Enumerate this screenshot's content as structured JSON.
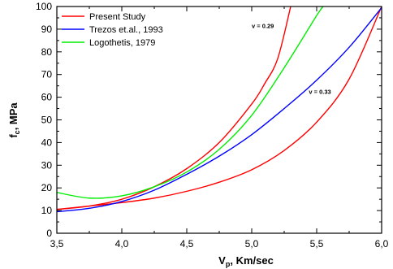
{
  "chart_data": {
    "type": "line",
    "xlabel": "V",
    "xlabel_sub": "p",
    "xlabel_unit": ", Km/sec",
    "ylabel": "f",
    "ylabel_sub": "c",
    "ylabel_unit": ", MPa",
    "xlim": [
      3.5,
      6.0
    ],
    "ylim": [
      0,
      100
    ],
    "x_ticks": [
      3.5,
      4.0,
      4.5,
      5.0,
      5.5,
      6.0
    ],
    "x_tick_labels": [
      "3,5",
      "4,0",
      "4,5",
      "5,0",
      "5,5",
      "6,0"
    ],
    "y_ticks": [
      0,
      10,
      20,
      30,
      40,
      50,
      60,
      70,
      80,
      90,
      100
    ],
    "y_tick_labels": [
      "0",
      "10",
      "20",
      "30",
      "40",
      "50",
      "60",
      "70",
      "80",
      "90",
      "100"
    ],
    "grid": false,
    "legend_position": "top-left",
    "series": [
      {
        "name": "Present Study",
        "color": "#ff0000",
        "x": [
          3.5,
          3.75,
          4.0,
          4.25,
          4.5,
          4.75,
          5.0,
          5.1,
          5.2,
          5.3
        ],
        "y": [
          10.5,
          12.0,
          15.0,
          20.5,
          28.5,
          40.0,
          57.0,
          66.0,
          77.0,
          100.0
        ]
      },
      {
        "name": "",
        "color": "#ff0000",
        "x": [
          3.5,
          3.75,
          4.0,
          4.25,
          4.5,
          4.75,
          5.0,
          5.25,
          5.5,
          5.75,
          6.0
        ],
        "y": [
          10.5,
          12.0,
          13.5,
          15.5,
          18.5,
          22.5,
          28.0,
          36.5,
          49.0,
          68.0,
          100.0
        ]
      },
      {
        "name": "Trezos et.al., 1993",
        "color": "#0000ff",
        "x": [
          3.5,
          3.75,
          4.0,
          4.25,
          4.5,
          4.75,
          5.0,
          5.25,
          5.5,
          5.75,
          6.0
        ],
        "y": [
          9.5,
          11.0,
          14.0,
          19.0,
          26.0,
          34.0,
          43.5,
          55.0,
          67.5,
          82.0,
          99.5
        ]
      },
      {
        "name": "Logothetis, 1979",
        "color": "#00ee00",
        "x": [
          3.5,
          3.75,
          4.0,
          4.25,
          4.5,
          4.75,
          5.0,
          5.25,
          5.5,
          5.55
        ],
        "y": [
          18.0,
          15.5,
          16.5,
          20.5,
          27.0,
          37.0,
          52.0,
          73.0,
          96.0,
          100.0
        ]
      }
    ],
    "annotations": [
      {
        "text": "v = 0.29",
        "x": 5.0,
        "y": 90.5
      },
      {
        "text": "v = 0.33",
        "x": 5.44,
        "y": 61.5
      }
    ]
  }
}
